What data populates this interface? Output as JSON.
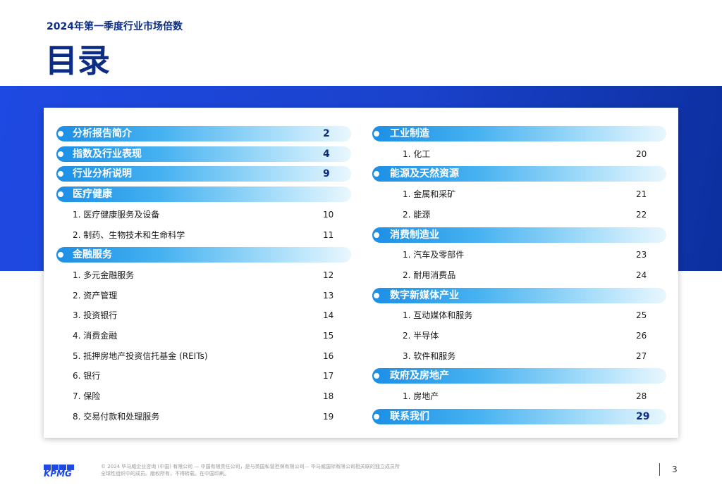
{
  "header": {
    "subtitle": "2024年第一季度行业市场倍数",
    "title": "目录"
  },
  "toc": {
    "left": [
      {
        "title": "分析报告简介",
        "page": 2,
        "items": []
      },
      {
        "title": "指数及行业表现",
        "page": 4,
        "items": []
      },
      {
        "title": "行业分析说明",
        "page": 9,
        "items": []
      },
      {
        "title": "医疗健康",
        "items": [
          {
            "label": "1. 医疗健康服务及设备",
            "page": 10
          },
          {
            "label": "2. 制药、生物技术和生命科学",
            "page": 11
          }
        ]
      },
      {
        "title": "金融服务",
        "items": [
          {
            "label": "1. 多元金融服务",
            "page": 12
          },
          {
            "label": "2. 资产管理",
            "page": 13
          },
          {
            "label": "3. 投资银行",
            "page": 14
          },
          {
            "label": "4. 消费金融",
            "page": 15
          },
          {
            "label": "5. 抵押房地产投资信托基金 (REITs)",
            "page": 16
          },
          {
            "label": "6. 银行",
            "page": 17
          },
          {
            "label": "7. 保险",
            "page": 18
          },
          {
            "label": "8. 交易付款和处理服务",
            "page": 19
          }
        ]
      }
    ],
    "right": [
      {
        "title": "工业制造",
        "items": [
          {
            "label": "1. 化工",
            "page": 20
          }
        ]
      },
      {
        "title": "能源及天然资源",
        "items": [
          {
            "label": "1. 金属和采矿",
            "page": 21
          },
          {
            "label": "2. 能源",
            "page": 22
          }
        ]
      },
      {
        "title": "消费制造业",
        "items": [
          {
            "label": "1. 汽车及零部件",
            "page": 23
          },
          {
            "label": "2. 耐用消费品",
            "page": 24
          }
        ]
      },
      {
        "title": "数字新媒体产业",
        "items": [
          {
            "label": "1. 互动媒体和服务",
            "page": 25
          },
          {
            "label": "2. 半导体",
            "page": 26
          },
          {
            "label": "3. 软件和服务",
            "page": 27
          }
        ]
      },
      {
        "title": "政府及房地产",
        "items": [
          {
            "label": "1. 房地产",
            "page": 28
          }
        ]
      },
      {
        "title": "联系我们",
        "page": 29,
        "items": []
      }
    ]
  },
  "footer": {
    "logo": "KPMG",
    "copyright": [
      "© 2024 毕马威企业咨询 (中国) 有限公司 — 中国有限责任公司，是与英国私营担保有限公司— 毕马威国际有限公司相关联的独立成员所",
      "全球性组织中的成员。版权所有，不得转载。在中国印刷。"
    ],
    "page_number": 3
  }
}
